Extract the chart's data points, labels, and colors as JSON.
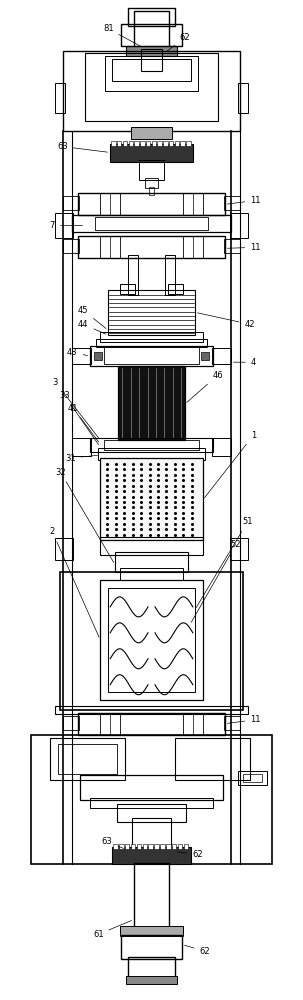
{
  "bg_color": "#ffffff",
  "lc": "#000000",
  "fig_width": 3.03,
  "fig_height": 10.0,
  "dpi": 100
}
